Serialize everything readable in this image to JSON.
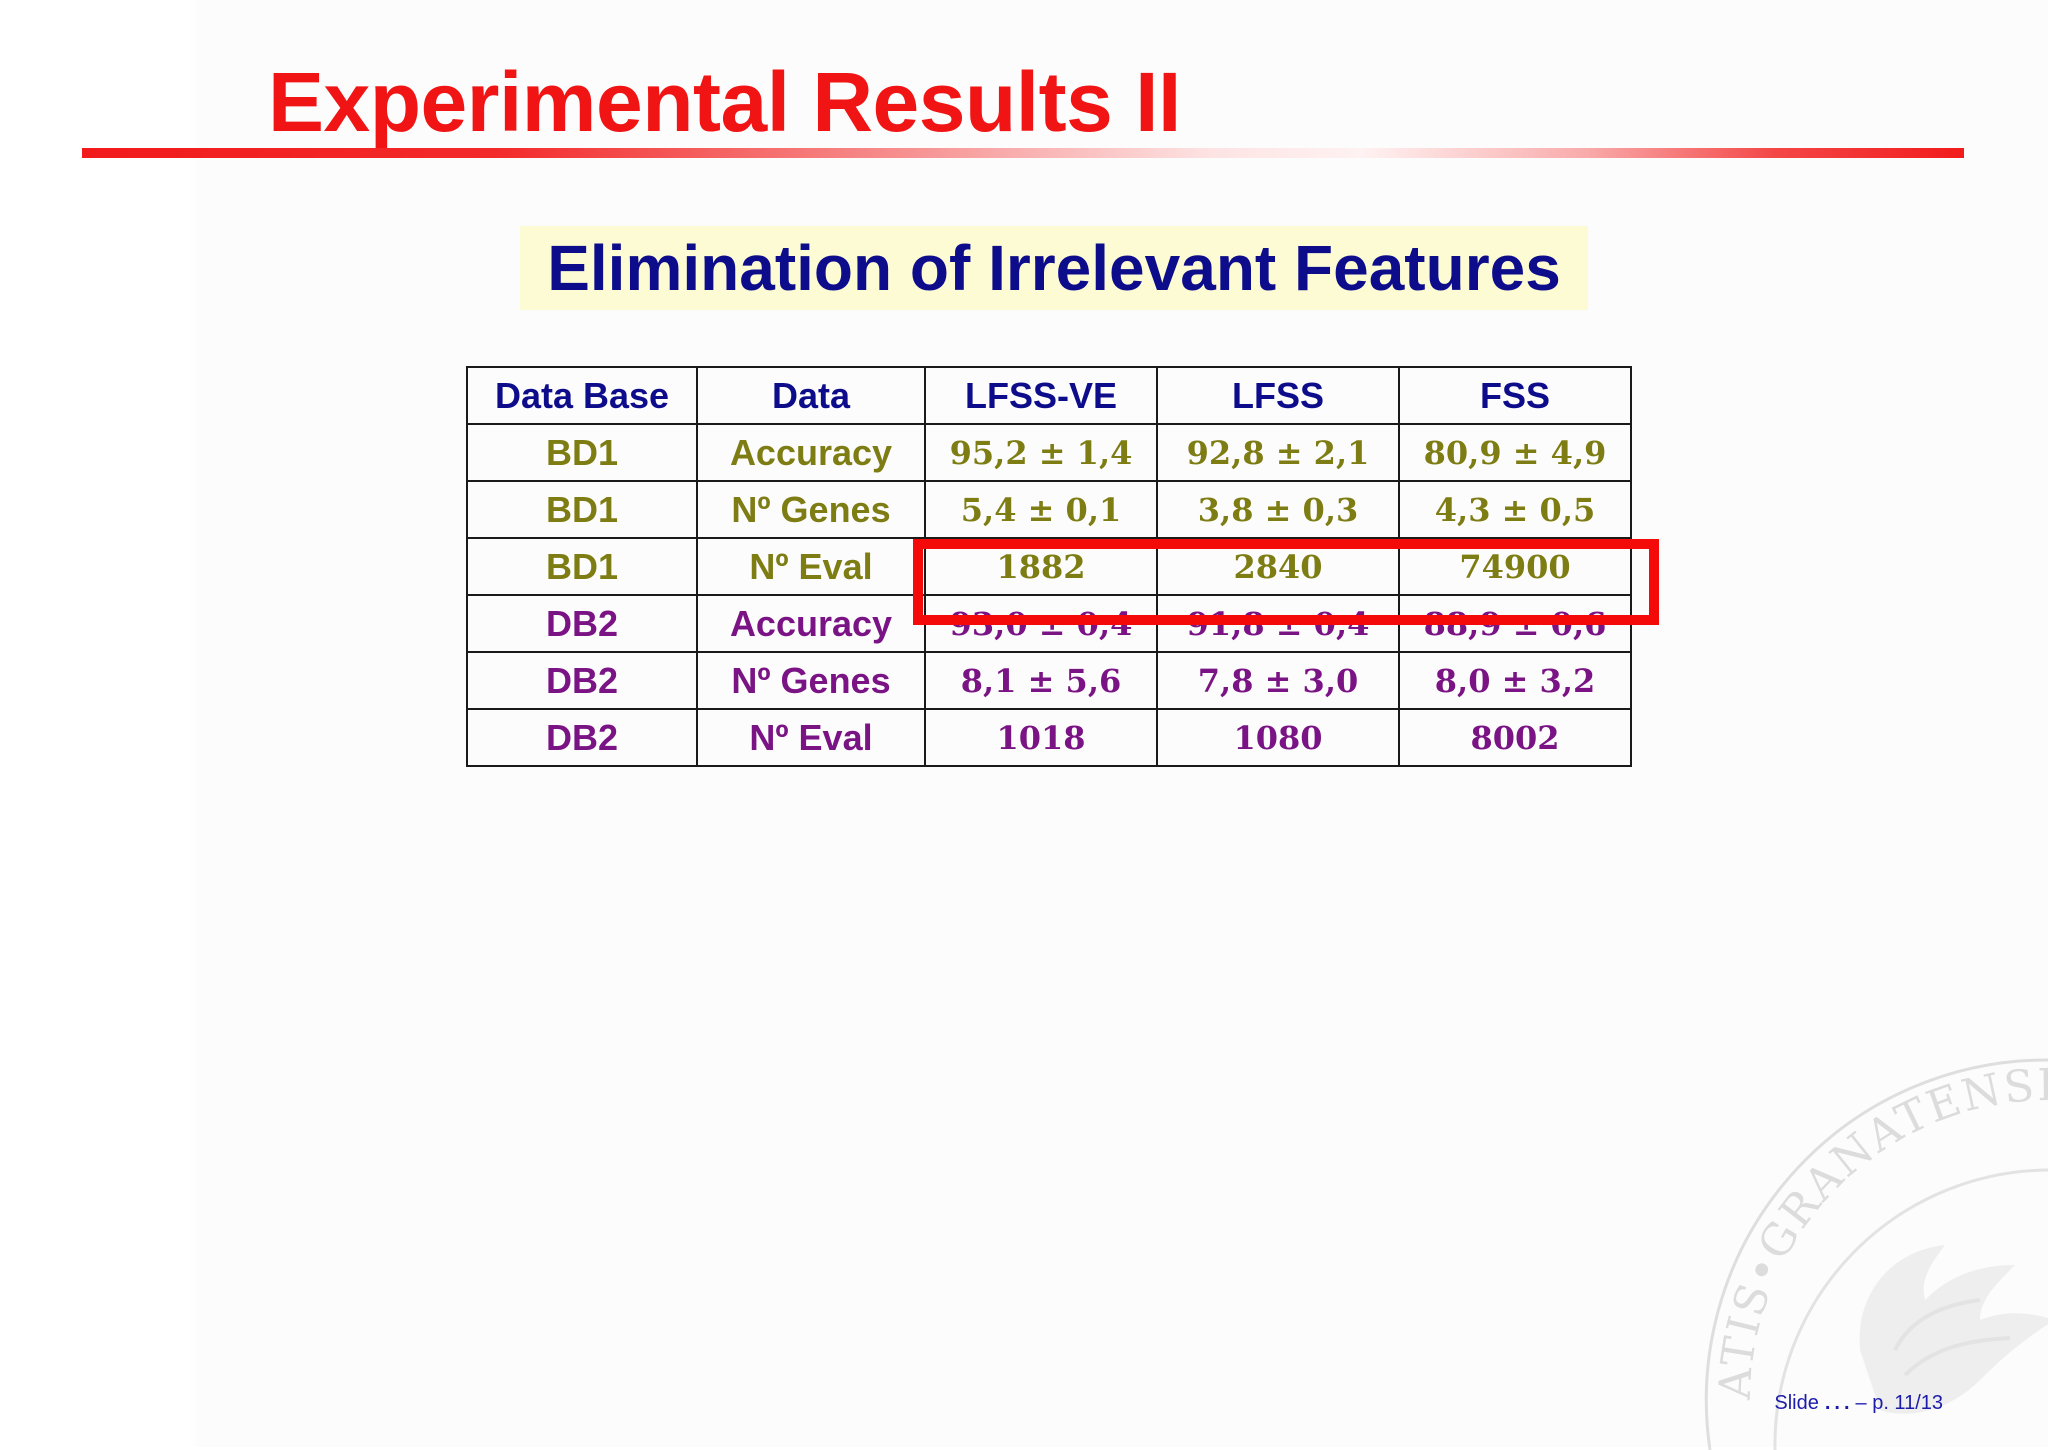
{
  "slide": {
    "title": "Experimental Results II",
    "subtitle": "Elimination of Irrelevant Features"
  },
  "table": {
    "headers": [
      "Data Base",
      "Data",
      "LFSS-VE",
      "LFSS",
      "FSS"
    ],
    "rows": [
      [
        "BD1",
        "Accuracy",
        "95,2 ± 1,4",
        "92,8 ± 2,1",
        "80,9 ± 4,9"
      ],
      [
        "BD1",
        "Nº Genes",
        "5,4 ± 0,1",
        "3,8 ± 0,3",
        "4,3 ± 0,5"
      ],
      [
        "BD1",
        "Nº Eval",
        "1882",
        "2840",
        "74900"
      ],
      [
        "DB2",
        "Accuracy",
        "93,0 ± 0,4",
        "91,8 ± 0,4",
        "88,9 ± 0,6"
      ],
      [
        "DB2",
        "Nº Genes",
        "8,1 ± 5,6",
        "7,8 ± 3,0",
        "8,0 ± 3,2"
      ],
      [
        "DB2",
        "Nº Eval",
        "1018",
        "1080",
        "8002"
      ]
    ]
  },
  "watermark": {
    "icon": "university-seal-icon",
    "text": "ATIS•GRANATENSIS•E"
  },
  "footer": {
    "prefix": "Slide",
    "dots": "...",
    "suffix": "– p. 11/13"
  },
  "colors": {
    "title": "#f01414",
    "heading": "#0d0d8c",
    "bd1_rows": "#7d7d14",
    "db2_rows": "#7a1485",
    "highlight": "#f50a0a",
    "subtitle_bg": "#fdfbd3"
  }
}
